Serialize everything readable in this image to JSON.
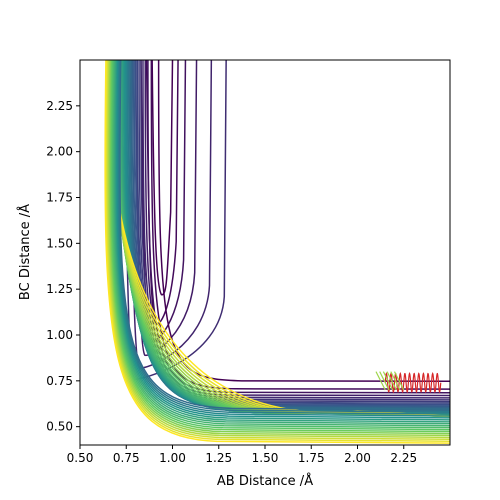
{
  "chart_data": {
    "type": "contour",
    "title": "",
    "xlabel": "AB Distance /Å",
    "ylabel": "BC Distance /Å",
    "xlim": [
      0.5,
      2.5
    ],
    "ylim": [
      0.4,
      2.5
    ],
    "x_ticks": [
      "0.50",
      "0.75",
      "1.00",
      "1.25",
      "1.50",
      "1.75",
      "2.00",
      "2.25"
    ],
    "y_ticks": [
      "0.50",
      "0.75",
      "1.00",
      "1.25",
      "1.50",
      "1.75",
      "2.00",
      "2.25"
    ],
    "grid": false,
    "legend": "none",
    "colormap": [
      "#440154",
      "#3b528b",
      "#21918c",
      "#5ec962",
      "#fde725"
    ],
    "contours": {
      "wall_contact_x_start": 0.925,
      "wall_contact_x_end": 0.655,
      "wall_contact_y_start": 0.74,
      "wall_contact_y_end": 0.44,
      "level_count": 34,
      "inner_well_levels": [
        {
          "x_min": 0.92,
          "y_min": 1.22,
          "x_max_at_top": 0.99
        },
        {
          "x_min": 0.89,
          "y_min": 1.06,
          "x_max_at_top": 1.02
        },
        {
          "x_min": 0.86,
          "y_min": 0.96,
          "x_max_at_top": 1.06
        },
        {
          "x_min": 0.83,
          "y_min": 0.89,
          "x_max_at_top": 1.12
        },
        {
          "x_min": 0.8,
          "y_min": 0.82,
          "x_max_at_top": 1.2
        },
        {
          "x_min": 0.77,
          "y_min": 0.76,
          "x_max_at_top": 1.28
        }
      ]
    },
    "trajectory": {
      "color": "#d62728",
      "x": [
        2.15,
        2.2,
        2.25,
        2.3,
        2.35,
        2.4,
        2.45
      ],
      "y": [
        0.75,
        0.76,
        0.74,
        0.77,
        0.73,
        0.75,
        0.7
      ]
    }
  }
}
